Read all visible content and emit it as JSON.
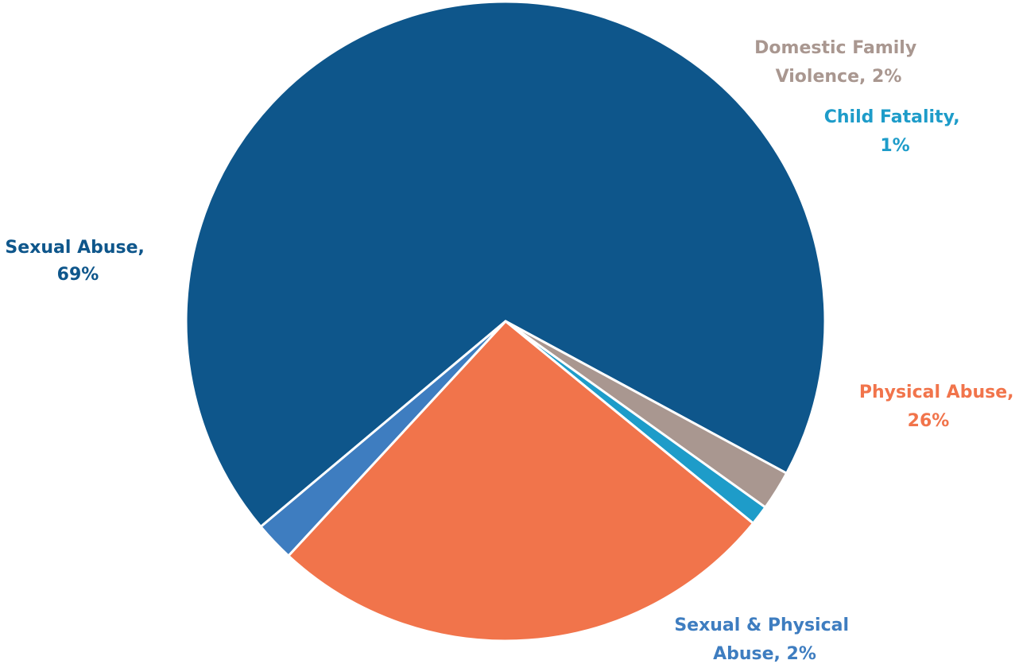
{
  "chart_data": {
    "type": "pie",
    "slices": [
      {
        "name": "Sexual Abuse",
        "value": 69,
        "color": "#0E568B",
        "label_line1": "Sexual Abuse,",
        "label_line2": "69%"
      },
      {
        "name": "Domestic Family Violence",
        "value": 2,
        "color": "#A99790",
        "label_line1": "Domestic Family",
        "label_line2": "Violence, 2%"
      },
      {
        "name": "Child Fatality",
        "value": 1,
        "color": "#1E9CC9",
        "label_line1": "Child Fatality,",
        "label_line2": "1%"
      },
      {
        "name": "Physical Abuse",
        "value": 26,
        "color": "#F1744B",
        "label_line1": "Physical Abuse,",
        "label_line2": "26%"
      },
      {
        "name": "Sexual & Physical Abuse",
        "value": 2,
        "color": "#3E7DC0",
        "label_line1": "Sexual & Physical",
        "label_line2": "Abuse, 2%"
      }
    ]
  }
}
